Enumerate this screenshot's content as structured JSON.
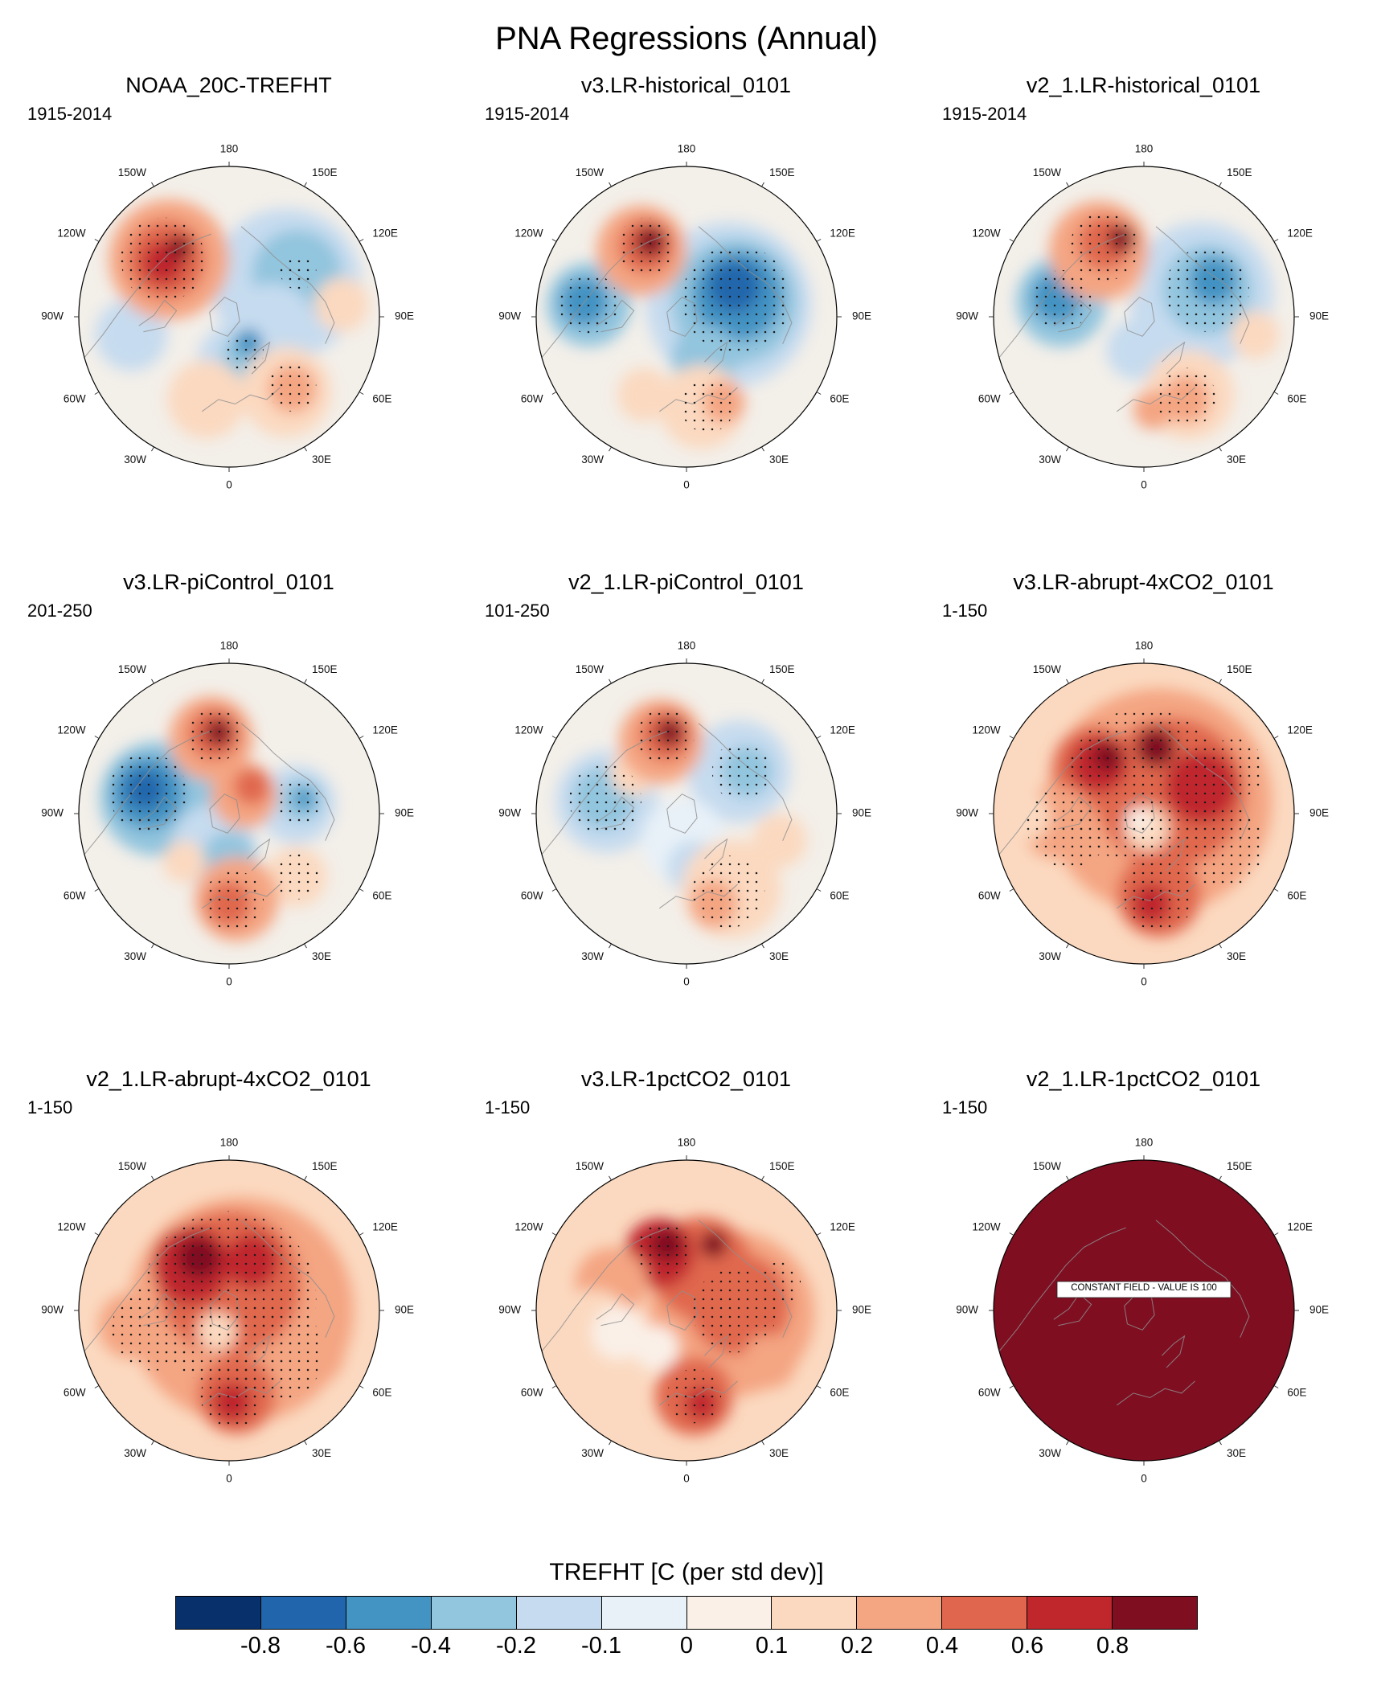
{
  "title": "PNA Regressions (Annual)",
  "chart_data": {
    "type": "heatmap",
    "projection": "north-polar-stereographic",
    "variable": "TREFHT",
    "units": "C (per std dev)",
    "colorbar": {
      "title": "TREFHT [C (per std dev)]",
      "tick_labels": [
        "-0.8",
        "-0.6",
        "-0.4",
        "-0.2",
        "-0.1",
        "0",
        "0.1",
        "0.2",
        "0.4",
        "0.6",
        "0.8"
      ],
      "colors": [
        "#08306b",
        "#2166ac",
        "#4393c3",
        "#92c5de",
        "#c6dbef",
        "#e8f1f8",
        "#faf0e8",
        "#fbd9c0",
        "#f4a582",
        "#e0674e",
        "#c0272d",
        "#7f0e21"
      ]
    },
    "lon_labels": [
      {
        "text": "180",
        "deg": 0
      },
      {
        "text": "150E",
        "deg": 30
      },
      {
        "text": "120E",
        "deg": 60
      },
      {
        "text": "90E",
        "deg": 90
      },
      {
        "text": "60E",
        "deg": 120
      },
      {
        "text": "30E",
        "deg": 150
      },
      {
        "text": "0",
        "deg": 180
      },
      {
        "text": "30W",
        "deg": 210
      },
      {
        "text": "60W",
        "deg": 240
      },
      {
        "text": "90W",
        "deg": 270
      },
      {
        "text": "120W",
        "deg": 300
      },
      {
        "text": "150W",
        "deg": 330
      }
    ],
    "panels": [
      {
        "title": "NOAA_20C-TREFHT",
        "period": "1915-2014",
        "base": "#f3efe9",
        "blobs": [
          [
            0.38,
            -0.22,
            0.5,
            "#c6dbef"
          ],
          [
            0.45,
            -0.28,
            0.3,
            "#92c5de"
          ],
          [
            0.28,
            0.08,
            0.3,
            "#c6dbef"
          ],
          [
            0.05,
            0.3,
            0.26,
            "#c6dbef"
          ],
          [
            0.1,
            0.27,
            0.15,
            "#92c5de"
          ],
          [
            0.13,
            0.17,
            0.09,
            "#4393c3"
          ],
          [
            -0.65,
            0.12,
            0.24,
            "#c6dbef"
          ],
          [
            -0.15,
            0.55,
            0.26,
            "#fbd9c0"
          ],
          [
            0.38,
            0.5,
            0.3,
            "#fbd9c0"
          ],
          [
            0.42,
            0.48,
            0.16,
            "#f4a582"
          ],
          [
            0.75,
            -0.08,
            0.18,
            "#fbd9c0"
          ],
          [
            -0.4,
            -0.38,
            0.4,
            "#f4a582"
          ],
          [
            -0.42,
            -0.38,
            0.26,
            "#e0674e"
          ],
          [
            -0.44,
            -0.36,
            0.14,
            "#c0272d"
          ],
          [
            -0.33,
            -0.46,
            0.08,
            "#7f0e21"
          ]
        ],
        "stipples": [
          [
            -0.44,
            -0.38,
            0.28
          ],
          [
            0.42,
            0.47,
            0.16
          ],
          [
            0.1,
            0.24,
            0.13
          ],
          [
            0.46,
            -0.3,
            0.12
          ]
        ]
      },
      {
        "title": "v3.LR-historical_0101",
        "period": "1915-2014",
        "base": "#f3efe9",
        "blobs": [
          [
            0.28,
            -0.08,
            0.55,
            "#c6dbef"
          ],
          [
            0.32,
            -0.1,
            0.42,
            "#92c5de"
          ],
          [
            0.34,
            -0.14,
            0.3,
            "#4393c3"
          ],
          [
            0.32,
            -0.2,
            0.17,
            "#2166ac"
          ],
          [
            0.12,
            0.28,
            0.22,
            "#92c5de"
          ],
          [
            -0.65,
            -0.08,
            0.28,
            "#92c5de"
          ],
          [
            -0.68,
            -0.1,
            0.16,
            "#4393c3"
          ],
          [
            0.1,
            0.6,
            0.28,
            "#fbd9c0"
          ],
          [
            0.25,
            0.57,
            0.14,
            "#f4a582"
          ],
          [
            -0.28,
            0.52,
            0.18,
            "#fbd9c0"
          ],
          [
            -0.3,
            -0.44,
            0.3,
            "#f4a582"
          ],
          [
            -0.27,
            -0.47,
            0.18,
            "#e0674e"
          ],
          [
            -0.24,
            -0.5,
            0.1,
            "#7f0e21"
          ]
        ],
        "stipples": [
          [
            0.33,
            -0.12,
            0.36
          ],
          [
            -0.65,
            -0.09,
            0.2
          ],
          [
            -0.27,
            -0.46,
            0.2
          ],
          [
            0.14,
            0.59,
            0.18
          ]
        ]
      },
      {
        "title": "v2_1.LR-historical_0101",
        "period": "1915-2014",
        "base": "#f3efe9",
        "blobs": [
          [
            0.38,
            -0.15,
            0.48,
            "#c6dbef"
          ],
          [
            0.42,
            -0.18,
            0.3,
            "#92c5de"
          ],
          [
            0.46,
            -0.24,
            0.16,
            "#4393c3"
          ],
          [
            -0.55,
            -0.1,
            0.3,
            "#92c5de"
          ],
          [
            -0.58,
            -0.13,
            0.17,
            "#4393c3"
          ],
          [
            -0.05,
            0.22,
            0.2,
            "#c6dbef"
          ],
          [
            -0.15,
            -0.25,
            0.14,
            "#fbd9c0"
          ],
          [
            0.3,
            0.52,
            0.3,
            "#fbd9c0"
          ],
          [
            0.28,
            0.55,
            0.16,
            "#f4a582"
          ],
          [
            0.06,
            0.62,
            0.13,
            "#f4a582"
          ],
          [
            0.74,
            0.12,
            0.16,
            "#fbd9c0"
          ],
          [
            -0.3,
            -0.44,
            0.33,
            "#f4a582"
          ],
          [
            -0.26,
            -0.49,
            0.18,
            "#e0674e"
          ],
          [
            -0.15,
            -0.52,
            0.09,
            "#7f0e21"
          ]
        ],
        "stipples": [
          [
            0.42,
            -0.18,
            0.28
          ],
          [
            -0.55,
            -0.11,
            0.2
          ],
          [
            -0.26,
            -0.47,
            0.23
          ],
          [
            0.28,
            0.54,
            0.2
          ]
        ]
      },
      {
        "title": "v3.LR-piControl_0101",
        "period": "201-250",
        "base": "#f3efe9",
        "blobs": [
          [
            -0.48,
            -0.1,
            0.38,
            "#92c5de"
          ],
          [
            -0.54,
            -0.14,
            0.24,
            "#4393c3"
          ],
          [
            -0.56,
            -0.16,
            0.13,
            "#2166ac"
          ],
          [
            -0.1,
            0.22,
            0.28,
            "#c6dbef"
          ],
          [
            0.0,
            0.3,
            0.18,
            "#92c5de"
          ],
          [
            0.45,
            -0.06,
            0.26,
            "#c6dbef"
          ],
          [
            0.48,
            -0.09,
            0.14,
            "#92c5de"
          ],
          [
            0.5,
            -0.1,
            0.07,
            "#4393c3"
          ],
          [
            0.1,
            -0.12,
            0.22,
            "#f4a582"
          ],
          [
            0.15,
            -0.18,
            0.12,
            "#e0674e"
          ],
          [
            0.45,
            0.42,
            0.2,
            "#fbd9c0"
          ],
          [
            -0.3,
            0.32,
            0.14,
            "#fbd9c0"
          ],
          [
            0.05,
            0.57,
            0.28,
            "#f4a582"
          ],
          [
            0.0,
            0.6,
            0.15,
            "#e0674e"
          ],
          [
            -0.12,
            -0.5,
            0.28,
            "#f4a582"
          ],
          [
            -0.1,
            -0.53,
            0.17,
            "#e0674e"
          ],
          [
            -0.07,
            -0.54,
            0.09,
            "#7f0e21"
          ]
        ],
        "stipples": [
          [
            -0.54,
            -0.14,
            0.26
          ],
          [
            -0.1,
            -0.52,
            0.18
          ],
          [
            0.46,
            -0.08,
            0.16
          ],
          [
            0.03,
            0.58,
            0.2
          ],
          [
            0.45,
            0.42,
            0.15
          ]
        ]
      },
      {
        "title": "v2_1.LR-piControl_0101",
        "period": "101-250",
        "base": "#f3efe9",
        "blobs": [
          [
            -0.53,
            -0.08,
            0.34,
            "#c6dbef"
          ],
          [
            -0.55,
            -0.1,
            0.21,
            "#92c5de"
          ],
          [
            0.35,
            -0.28,
            0.34,
            "#c6dbef"
          ],
          [
            0.4,
            -0.28,
            0.17,
            "#92c5de"
          ],
          [
            -0.02,
            0.18,
            0.28,
            "#e8f1f8"
          ],
          [
            0.05,
            0.36,
            0.18,
            "#c6dbef"
          ],
          [
            -0.35,
            -0.28,
            0.16,
            "#fbd9c0"
          ],
          [
            0.3,
            0.5,
            0.33,
            "#fbd9c0"
          ],
          [
            0.18,
            0.6,
            0.16,
            "#f4a582"
          ],
          [
            0.62,
            0.18,
            0.18,
            "#fbd9c0"
          ],
          [
            -0.17,
            -0.48,
            0.28,
            "#f4a582"
          ],
          [
            -0.14,
            -0.52,
            0.17,
            "#e0674e"
          ],
          [
            -0.11,
            -0.54,
            0.09,
            "#7f0e21"
          ]
        ],
        "stipples": [
          [
            -0.54,
            -0.09,
            0.24
          ],
          [
            0.37,
            -0.28,
            0.2
          ],
          [
            -0.14,
            -0.51,
            0.19
          ],
          [
            0.28,
            0.52,
            0.24
          ]
        ]
      },
      {
        "title": "v3.LR-abrupt-4xCO2_0101",
        "period": "1-150",
        "base": "#fbd9c0",
        "blobs": [
          [
            0.1,
            -0.08,
            0.75,
            "#f4a582"
          ],
          [
            0.18,
            -0.14,
            0.5,
            "#e0674e"
          ],
          [
            0.38,
            -0.18,
            0.24,
            "#c0272d"
          ],
          [
            -0.33,
            -0.3,
            0.28,
            "#e0674e"
          ],
          [
            -0.3,
            -0.33,
            0.19,
            "#c0272d"
          ],
          [
            -0.24,
            -0.38,
            0.1,
            "#7f0e21"
          ],
          [
            0.08,
            -0.44,
            0.13,
            "#7f0e21"
          ],
          [
            -0.58,
            0.06,
            0.24,
            "#f4a582"
          ],
          [
            -0.78,
            0.02,
            0.16,
            "#fbd9c0"
          ],
          [
            0.02,
            0.1,
            0.15,
            "#fbd9c0"
          ],
          [
            -0.04,
            0.04,
            0.08,
            "#faf0e8"
          ],
          [
            0.1,
            0.54,
            0.28,
            "#e0674e"
          ],
          [
            0.05,
            0.6,
            0.13,
            "#c0272d"
          ]
        ],
        "stipples": [
          [
            0.0,
            -0.18,
            0.52
          ],
          [
            -0.5,
            0.08,
            0.28
          ],
          [
            0.1,
            0.54,
            0.24
          ],
          [
            0.52,
            0.22,
            0.28
          ],
          [
            0.6,
            -0.3,
            0.2
          ]
        ]
      },
      {
        "title": "v2_1.LR-abrupt-4xCO2_0101",
        "period": "1-150",
        "base": "#fbd9c0",
        "blobs": [
          [
            0.08,
            0.0,
            0.75,
            "#f4a582"
          ],
          [
            0.0,
            -0.18,
            0.48,
            "#e0674e"
          ],
          [
            -0.25,
            -0.3,
            0.26,
            "#c0272d"
          ],
          [
            -0.2,
            -0.35,
            0.14,
            "#7f0e21"
          ],
          [
            0.15,
            -0.33,
            0.18,
            "#c0272d"
          ],
          [
            0.05,
            0.56,
            0.26,
            "#e0674e"
          ],
          [
            0.02,
            0.61,
            0.13,
            "#c0272d"
          ],
          [
            -0.65,
            0.1,
            0.22,
            "#f4a582"
          ],
          [
            0.55,
            0.28,
            0.22,
            "#f4a582"
          ],
          [
            -0.08,
            0.14,
            0.13,
            "#fbd9c0"
          ]
        ],
        "stipples": [
          [
            0.0,
            -0.08,
            0.58
          ],
          [
            0.3,
            0.28,
            0.33
          ],
          [
            -0.5,
            0.12,
            0.28
          ],
          [
            0.02,
            0.57,
            0.21
          ]
        ]
      },
      {
        "title": "v3.LR-1pctCO2_0101",
        "period": "1-150",
        "base": "#fbd9c0",
        "blobs": [
          [
            0.3,
            0.02,
            0.55,
            "#f4a582"
          ],
          [
            0.35,
            -0.04,
            0.34,
            "#e0674e"
          ],
          [
            0.1,
            -0.28,
            0.34,
            "#e0674e"
          ],
          [
            -0.18,
            -0.38,
            0.23,
            "#c0272d"
          ],
          [
            -0.13,
            -0.44,
            0.11,
            "#7f0e21"
          ],
          [
            0.18,
            -0.44,
            0.09,
            "#7f0e21"
          ],
          [
            -0.5,
            -0.18,
            0.24,
            "#f4a582"
          ],
          [
            -0.62,
            0.1,
            0.24,
            "#fbd9c0"
          ],
          [
            -0.45,
            0.15,
            0.18,
            "#faf0e8"
          ],
          [
            -0.2,
            0.25,
            0.15,
            "#faf0e8"
          ],
          [
            0.05,
            0.57,
            0.26,
            "#e0674e"
          ],
          [
            0.1,
            0.62,
            0.11,
            "#c0272d"
          ],
          [
            0.55,
            0.34,
            0.18,
            "#f4a582"
          ]
        ],
        "stipples": [
          [
            -0.16,
            -0.4,
            0.18
          ],
          [
            0.32,
            0.0,
            0.28
          ],
          [
            0.05,
            0.57,
            0.18
          ],
          [
            0.62,
            -0.18,
            0.14
          ]
        ]
      },
      {
        "title": "v2_1.LR-1pctCO2_0101",
        "period": "1-150",
        "base": "#7f0e21",
        "blobs": [],
        "stipples": [],
        "note": "CONSTANT FIELD - VALUE IS 100"
      }
    ]
  }
}
